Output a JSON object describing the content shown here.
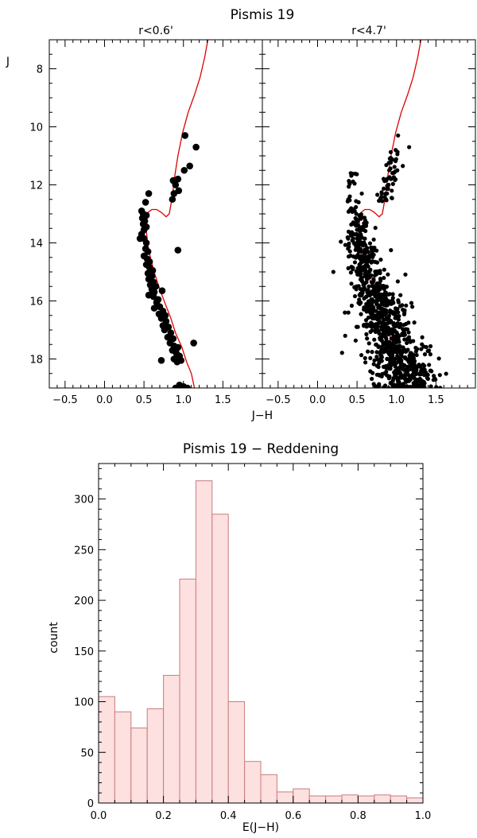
{
  "figure_title": "Pismis 19",
  "shared_xlabel": "J−H",
  "shared_ylabel": "J",
  "chart_data": [
    {
      "type": "scatter",
      "panel": "r<0.6'",
      "subtitle": "r<0.6'",
      "xlabel": "J−H",
      "ylabel": "J",
      "xlim": [
        -0.7,
        2.0
      ],
      "ylim": [
        19,
        7
      ],
      "y_inverted": true,
      "xticks": [
        "−0.5",
        "0.0",
        "0.5",
        "1.0",
        "1.5"
      ],
      "yticks": [
        "8",
        "10",
        "12",
        "14",
        "16",
        "18"
      ],
      "isochrone_color": "#dd0000",
      "isochrone": [
        [
          1.14,
          19.0
        ],
        [
          1.1,
          18.5
        ],
        [
          1.04,
          18.1
        ],
        [
          0.98,
          17.6
        ],
        [
          0.9,
          17.1
        ],
        [
          0.84,
          16.6
        ],
        [
          0.77,
          16.1
        ],
        [
          0.7,
          15.6
        ],
        [
          0.64,
          15.1
        ],
        [
          0.59,
          14.6
        ],
        [
          0.55,
          14.1
        ],
        [
          0.53,
          13.6
        ],
        [
          0.53,
          13.2
        ],
        [
          0.55,
          12.95
        ],
        [
          0.6,
          12.85
        ],
        [
          0.66,
          12.85
        ],
        [
          0.72,
          12.95
        ],
        [
          0.78,
          13.1
        ],
        [
          0.82,
          13.0
        ],
        [
          0.86,
          12.4
        ],
        [
          0.89,
          11.7
        ],
        [
          0.93,
          11.0
        ],
        [
          0.99,
          10.2
        ],
        [
          1.06,
          9.5
        ],
        [
          1.14,
          8.9
        ],
        [
          1.21,
          8.3
        ],
        [
          1.27,
          7.6
        ],
        [
          1.31,
          7.0
        ]
      ],
      "stars": [
        [
          1.02,
          10.3
        ],
        [
          1.16,
          10.7
        ],
        [
          1.08,
          11.35
        ],
        [
          1.01,
          11.5
        ],
        [
          0.93,
          11.8
        ],
        [
          0.87,
          11.85
        ],
        [
          0.9,
          12.0
        ],
        [
          0.94,
          12.2
        ],
        [
          0.88,
          12.3
        ],
        [
          0.86,
          12.5
        ],
        [
          0.56,
          12.3
        ],
        [
          0.52,
          12.6
        ],
        [
          0.47,
          12.9
        ],
        [
          0.49,
          13.0
        ],
        [
          0.53,
          13.05
        ],
        [
          0.48,
          13.15
        ],
        [
          0.51,
          13.25
        ],
        [
          0.49,
          13.35
        ],
        [
          0.53,
          13.45
        ],
        [
          0.5,
          13.55
        ],
        [
          0.47,
          13.7
        ],
        [
          0.45,
          13.85
        ],
        [
          0.5,
          13.85
        ],
        [
          0.53,
          14.0
        ],
        [
          0.52,
          14.2
        ],
        [
          0.55,
          14.3
        ],
        [
          0.5,
          14.45
        ],
        [
          0.54,
          14.55
        ],
        [
          0.57,
          14.65
        ],
        [
          0.53,
          14.75
        ],
        [
          0.57,
          14.85
        ],
        [
          0.61,
          14.95
        ],
        [
          0.55,
          15.05
        ],
        [
          0.6,
          15.15
        ],
        [
          0.56,
          15.25
        ],
        [
          0.62,
          15.35
        ],
        [
          0.58,
          15.45
        ],
        [
          0.65,
          15.5
        ],
        [
          0.6,
          15.6
        ],
        [
          0.63,
          15.7
        ],
        [
          0.56,
          15.8
        ],
        [
          0.62,
          15.85
        ],
        [
          0.68,
          15.95
        ],
        [
          0.73,
          15.65
        ],
        [
          0.66,
          16.05
        ],
        [
          0.7,
          16.2
        ],
        [
          0.63,
          16.25
        ],
        [
          0.74,
          16.35
        ],
        [
          0.69,
          16.45
        ],
        [
          0.77,
          16.5
        ],
        [
          0.72,
          16.6
        ],
        [
          0.78,
          16.7
        ],
        [
          0.74,
          16.85
        ],
        [
          0.81,
          16.9
        ],
        [
          0.76,
          17.0
        ],
        [
          0.84,
          17.1
        ],
        [
          0.8,
          17.25
        ],
        [
          0.87,
          17.3
        ],
        [
          0.83,
          17.45
        ],
        [
          0.88,
          17.55
        ],
        [
          0.93,
          17.6
        ],
        [
          0.86,
          17.7
        ],
        [
          0.91,
          17.8
        ],
        [
          0.95,
          17.9
        ],
        [
          0.88,
          18.0
        ],
        [
          0.97,
          18.05
        ],
        [
          0.92,
          18.1
        ],
        [
          1.13,
          17.45
        ],
        [
          0.72,
          18.05
        ],
        [
          0.93,
          14.25
        ],
        [
          0.9,
          19.0
        ],
        [
          1.0,
          18.95
        ],
        [
          1.05,
          19.0
        ],
        [
          0.95,
          18.9
        ]
      ]
    },
    {
      "type": "scatter",
      "panel": "r<4.7'",
      "subtitle": "r<4.7'",
      "xlabel": "J−H",
      "xlim": [
        -0.7,
        2.0
      ],
      "ylim": [
        19,
        7
      ],
      "y_inverted": true,
      "xticks": [
        "−0.5",
        "0.0",
        "0.5",
        "1.0",
        "1.5"
      ],
      "isochrone_color": "#dd0000"
    },
    {
      "type": "bar",
      "title": "Pismis 19 − Reddening",
      "xlabel": "E(J−H)",
      "ylabel": "count",
      "xlim": [
        0.0,
        1.0
      ],
      "ylim": [
        0,
        335
      ],
      "xticks": [
        "0.0",
        "0.2",
        "0.4",
        "0.6",
        "0.8",
        "1.0"
      ],
      "yticks": [
        "0",
        "50",
        "100",
        "150",
        "200",
        "250",
        "300"
      ],
      "bin_width": 0.05,
      "bin_starts": [
        0.0,
        0.05,
        0.1,
        0.15,
        0.2,
        0.25,
        0.3,
        0.35,
        0.4,
        0.45,
        0.5,
        0.55,
        0.6,
        0.65,
        0.7,
        0.75,
        0.8,
        0.85,
        0.9,
        0.95
      ],
      "values": [
        105,
        90,
        74,
        93,
        126,
        221,
        318,
        285,
        100,
        41,
        28,
        11,
        14,
        7,
        7,
        8,
        7,
        8,
        7,
        5
      ],
      "fill_color": "#fde0e0",
      "edge_color": "#c97c7c"
    }
  ]
}
